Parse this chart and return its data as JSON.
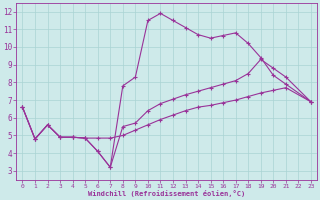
{
  "xlabel": "Windchill (Refroidissement éolien,°C)",
  "bg_color": "#ceeaea",
  "grid_color": "#aad4d4",
  "line_color": "#993399",
  "xlim": [
    -0.5,
    23.5
  ],
  "ylim": [
    2.5,
    12.5
  ],
  "xticks": [
    0,
    1,
    2,
    3,
    4,
    5,
    6,
    7,
    8,
    9,
    10,
    11,
    12,
    13,
    14,
    15,
    16,
    17,
    18,
    19,
    20,
    21,
    22,
    23
  ],
  "yticks": [
    3,
    4,
    5,
    6,
    7,
    8,
    9,
    10,
    11,
    12
  ],
  "line1_x": [
    0,
    1,
    2,
    3,
    4,
    5,
    6,
    7,
    8,
    9,
    10,
    11,
    12,
    13,
    14,
    15,
    16,
    17,
    18,
    19,
    20,
    21,
    23
  ],
  "line1_y": [
    6.6,
    4.8,
    5.6,
    4.9,
    4.9,
    4.85,
    4.1,
    3.2,
    7.8,
    8.3,
    11.5,
    11.9,
    11.5,
    11.1,
    10.7,
    10.5,
    10.65,
    10.8,
    10.2,
    9.4,
    8.4,
    7.9,
    6.9
  ],
  "line2_x": [
    0,
    1,
    2,
    3,
    4,
    5,
    6,
    7,
    8,
    9,
    10,
    11,
    12,
    13,
    14,
    15,
    16,
    17,
    18,
    19,
    20,
    21,
    23
  ],
  "line2_y": [
    6.6,
    4.8,
    5.6,
    4.9,
    4.9,
    4.85,
    4.1,
    3.2,
    5.5,
    5.7,
    6.4,
    6.8,
    7.05,
    7.3,
    7.5,
    7.7,
    7.9,
    8.1,
    8.5,
    9.3,
    8.8,
    8.3,
    6.9
  ],
  "line3_x": [
    0,
    1,
    2,
    3,
    4,
    5,
    6,
    7,
    8,
    9,
    10,
    11,
    12,
    13,
    14,
    15,
    16,
    17,
    18,
    19,
    20,
    21,
    23
  ],
  "line3_y": [
    6.6,
    4.8,
    5.6,
    4.9,
    4.9,
    4.85,
    4.85,
    4.85,
    5.0,
    5.3,
    5.6,
    5.9,
    6.15,
    6.4,
    6.6,
    6.7,
    6.85,
    7.0,
    7.2,
    7.4,
    7.55,
    7.7,
    6.9
  ]
}
